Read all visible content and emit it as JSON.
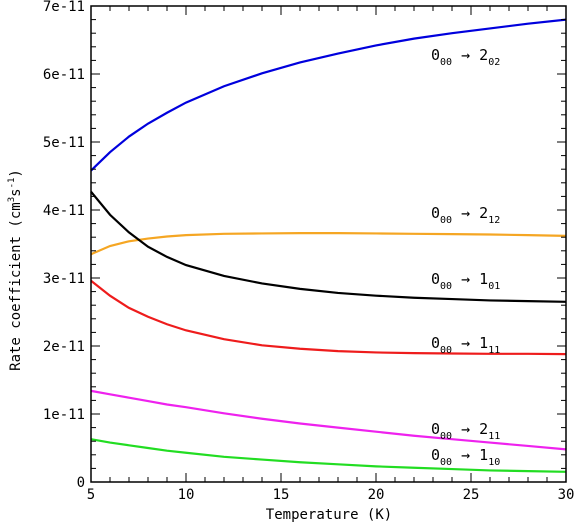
{
  "chart_data": {
    "type": "line",
    "xlabel": "Temperature (K)",
    "ylabel": {
      "base": "Rate coefficient (cm",
      "sup1": "3",
      "mid": "s",
      "sup2": "-1",
      "end": ")"
    },
    "xlim": [
      5,
      30
    ],
    "ylim": [
      0,
      7e-11
    ],
    "xticks": [
      5,
      10,
      15,
      20,
      25,
      30
    ],
    "yticks": [
      0,
      1e-11,
      2e-11,
      3e-11,
      4e-11,
      5e-11,
      6e-11,
      7e-11
    ],
    "ytick_labels": [
      "0",
      "1e-11",
      "2e-11",
      "3e-11",
      "4e-11",
      "5e-11",
      "6e-11",
      "7e-11"
    ],
    "series": [
      {
        "name": "0_00 -> 2_02",
        "label": {
          "from": "0",
          "from_sub": "00",
          "arrow": "→",
          "to": "2",
          "to_sub": "02"
        },
        "color": "#0000dd",
        "x": [
          5,
          6,
          7,
          8,
          9,
          10,
          12,
          14,
          16,
          18,
          20,
          22,
          24,
          26,
          28,
          30
        ],
        "y": [
          4.58e-11,
          4.85e-11,
          5.08e-11,
          5.27e-11,
          5.43e-11,
          5.58e-11,
          5.82e-11,
          6.01e-11,
          6.17e-11,
          6.3e-11,
          6.42e-11,
          6.52e-11,
          6.6e-11,
          6.67e-11,
          6.74e-11,
          6.8e-11
        ]
      },
      {
        "name": "0_00 -> 2_12",
        "label": {
          "from": "0",
          "from_sub": "00",
          "arrow": "→",
          "to": "2",
          "to_sub": "12"
        },
        "color": "#f5a623",
        "x": [
          5,
          6,
          7,
          8,
          9,
          10,
          12,
          14,
          16,
          18,
          20,
          22,
          24,
          26,
          28,
          30
        ],
        "y": [
          3.35e-11,
          3.47e-11,
          3.54e-11,
          3.58e-11,
          3.61e-11,
          3.63e-11,
          3.65e-11,
          3.655e-11,
          3.66e-11,
          3.66e-11,
          3.655e-11,
          3.65e-11,
          3.645e-11,
          3.64e-11,
          3.63e-11,
          3.62e-11
        ]
      },
      {
        "name": "0_00 -> 1_01",
        "label": {
          "from": "0",
          "from_sub": "00",
          "arrow": "→",
          "to": "1",
          "to_sub": "01"
        },
        "color": "#000000",
        "x": [
          5,
          6,
          7,
          8,
          9,
          10,
          12,
          14,
          16,
          18,
          20,
          22,
          24,
          26,
          28,
          30
        ],
        "y": [
          4.27e-11,
          3.93e-11,
          3.67e-11,
          3.46e-11,
          3.31e-11,
          3.19e-11,
          3.03e-11,
          2.92e-11,
          2.84e-11,
          2.78e-11,
          2.74e-11,
          2.71e-11,
          2.69e-11,
          2.67e-11,
          2.66e-11,
          2.65e-11
        ]
      },
      {
        "name": "0_00 -> 1_11",
        "label": {
          "from": "0",
          "from_sub": "00",
          "arrow": "→",
          "to": "1",
          "to_sub": "11"
        },
        "color": "#ee1c1c",
        "x": [
          5,
          6,
          7,
          8,
          9,
          10,
          12,
          14,
          16,
          18,
          20,
          22,
          24,
          26,
          28,
          30
        ],
        "y": [
          2.96e-11,
          2.74e-11,
          2.56e-11,
          2.43e-11,
          2.32e-11,
          2.23e-11,
          2.1e-11,
          2.01e-11,
          1.96e-11,
          1.925e-11,
          1.905e-11,
          1.895e-11,
          1.89e-11,
          1.885e-11,
          1.885e-11,
          1.88e-11
        ]
      },
      {
        "name": "0_00 -> 2_11",
        "label": {
          "from": "0",
          "from_sub": "00",
          "arrow": "→",
          "to": "2",
          "to_sub": "11"
        },
        "color": "#ee22ee",
        "x": [
          5,
          6,
          7,
          8,
          9,
          10,
          12,
          14,
          16,
          18,
          20,
          22,
          24,
          26,
          28,
          30
        ],
        "y": [
          1.34e-11,
          1.29e-11,
          1.24e-11,
          1.19e-11,
          1.14e-11,
          1.1e-11,
          1.01e-11,
          9.3e-12,
          8.6e-12,
          8e-12,
          7.4e-12,
          6.8e-12,
          6.3e-12,
          5.8e-12,
          5.3e-12,
          4.8e-12
        ]
      },
      {
        "name": "0_00 -> 1_10",
        "label": {
          "from": "0",
          "from_sub": "00",
          "arrow": "→",
          "to": "1",
          "to_sub": "10"
        },
        "color": "#22dd22",
        "x": [
          5,
          6,
          7,
          8,
          9,
          10,
          12,
          14,
          16,
          18,
          20,
          22,
          24,
          26,
          28,
          30
        ],
        "y": [
          6.3e-12,
          5.8e-12,
          5.4e-12,
          5e-12,
          4.6e-12,
          4.3e-12,
          3.7e-12,
          3.3e-12,
          2.9e-12,
          2.6e-12,
          2.3e-12,
          2.1e-12,
          1.9e-12,
          1.7e-12,
          1.6e-12,
          1.5e-12
        ]
      }
    ],
    "grid": false,
    "legend": "inline-labels"
  }
}
